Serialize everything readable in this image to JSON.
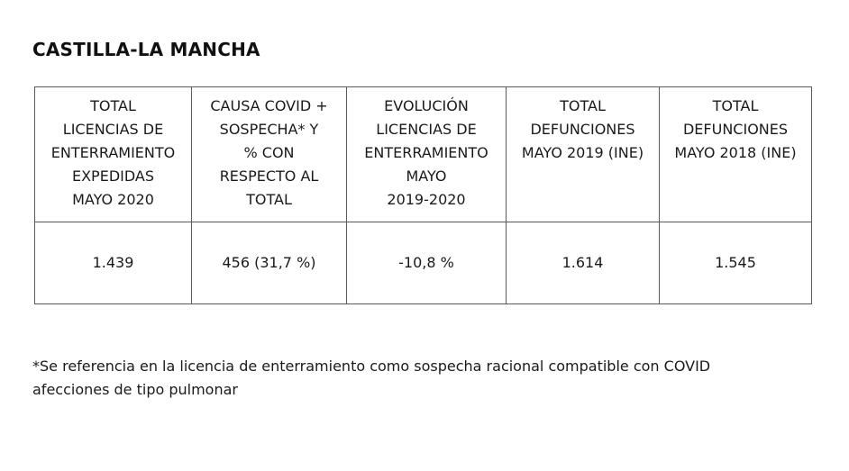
{
  "document": {
    "title": "CASTILLA-LA MANCHA",
    "table": {
      "headers": [
        "TOTAL\nLICENCIAS DE\nENTERRAMIENTO\nEXPEDIDAS\nMAYO 2020",
        "CAUSA COVID +\nSOSPECHA* Y\n% CON\nRESPECTO AL\nTOTAL",
        "EVOLUCIÓN\nLICENCIAS DE\nENTERRAMIENTO\nMAYO\n2019-2020",
        "TOTAL\nDEFUNCIONES\nMAYO 2019 (INE)",
        "TOTAL\nDEFUNCIONES\nMAYO 2018 (INE)"
      ],
      "values": [
        "1.439",
        "456 (31,7 %)",
        "-10,8 %",
        "1.614",
        "1.545"
      ]
    },
    "footnote": {
      "line1": "*Se referencia en la licencia de enterramiento como sospecha racional compatible con COVID",
      "line2": "afecciones de tipo pulmonar"
    }
  }
}
